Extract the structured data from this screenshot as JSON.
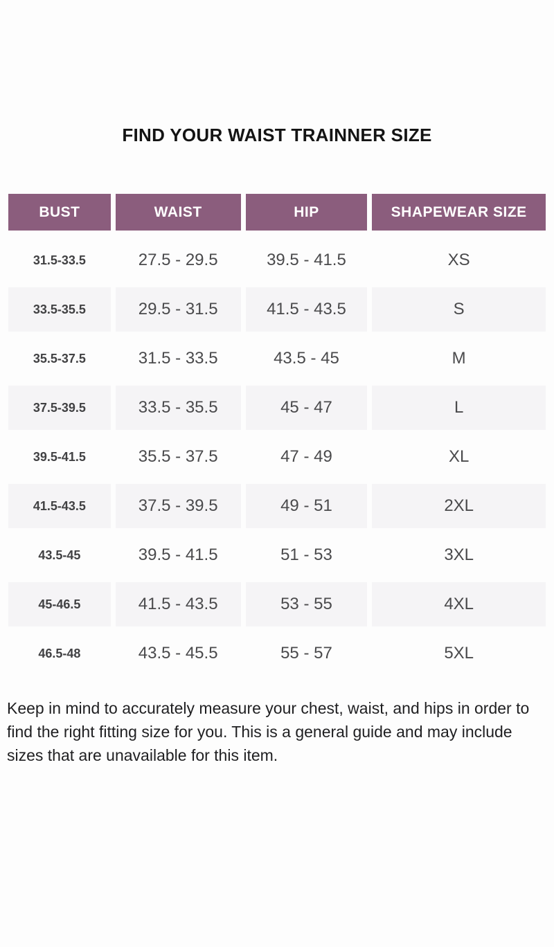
{
  "page": {
    "title": "FIND YOUR WAIST TRAINNER SIZE"
  },
  "colors": {
    "page_bg": "#fdfdfd",
    "title_text": "#141414",
    "header_bg": "#8b5d7d",
    "header_text": "#ffffff",
    "row_alt_bg": "#f5f4f6",
    "cell_text": "#4a4a4c",
    "bust_text": "#414143",
    "note_text": "#1f1f21"
  },
  "table": {
    "columns": [
      "BUST",
      "WAIST",
      "HIP",
      "SHAPEWEAR SIZE"
    ],
    "rows": [
      {
        "bust": "31.5-33.5",
        "waist": "27.5 - 29.5",
        "hip": "39.5 - 41.5",
        "size": "XS"
      },
      {
        "bust": "33.5-35.5",
        "waist": "29.5 - 31.5",
        "hip": "41.5 - 43.5",
        "size": "S"
      },
      {
        "bust": "35.5-37.5",
        "waist": "31.5 - 33.5",
        "hip": "43.5 - 45",
        "size": "M"
      },
      {
        "bust": "37.5-39.5",
        "waist": "33.5 - 35.5",
        "hip": "45 - 47",
        "size": "L"
      },
      {
        "bust": "39.5-41.5",
        "waist": "35.5 - 37.5",
        "hip": "47 - 49",
        "size": "XL"
      },
      {
        "bust": "41.5-43.5",
        "waist": "37.5 - 39.5",
        "hip": "49 - 51",
        "size": "2XL"
      },
      {
        "bust": "43.5-45",
        "waist": "39.5 - 41.5",
        "hip": "51 - 53",
        "size": "3XL"
      },
      {
        "bust": "45-46.5",
        "waist": "41.5 - 43.5",
        "hip": "53 - 55",
        "size": "4XL"
      },
      {
        "bust": "46.5-48",
        "waist": "43.5 - 45.5",
        "hip": "55 - 57",
        "size": "5XL"
      }
    ]
  },
  "note": {
    "lines": [
      "Keep in mind to accurately measure your chest, waist, and hips in order to",
      "find the right fitting size for you. This is a general guide and may include",
      "sizes that are unavailable for this item."
    ]
  }
}
